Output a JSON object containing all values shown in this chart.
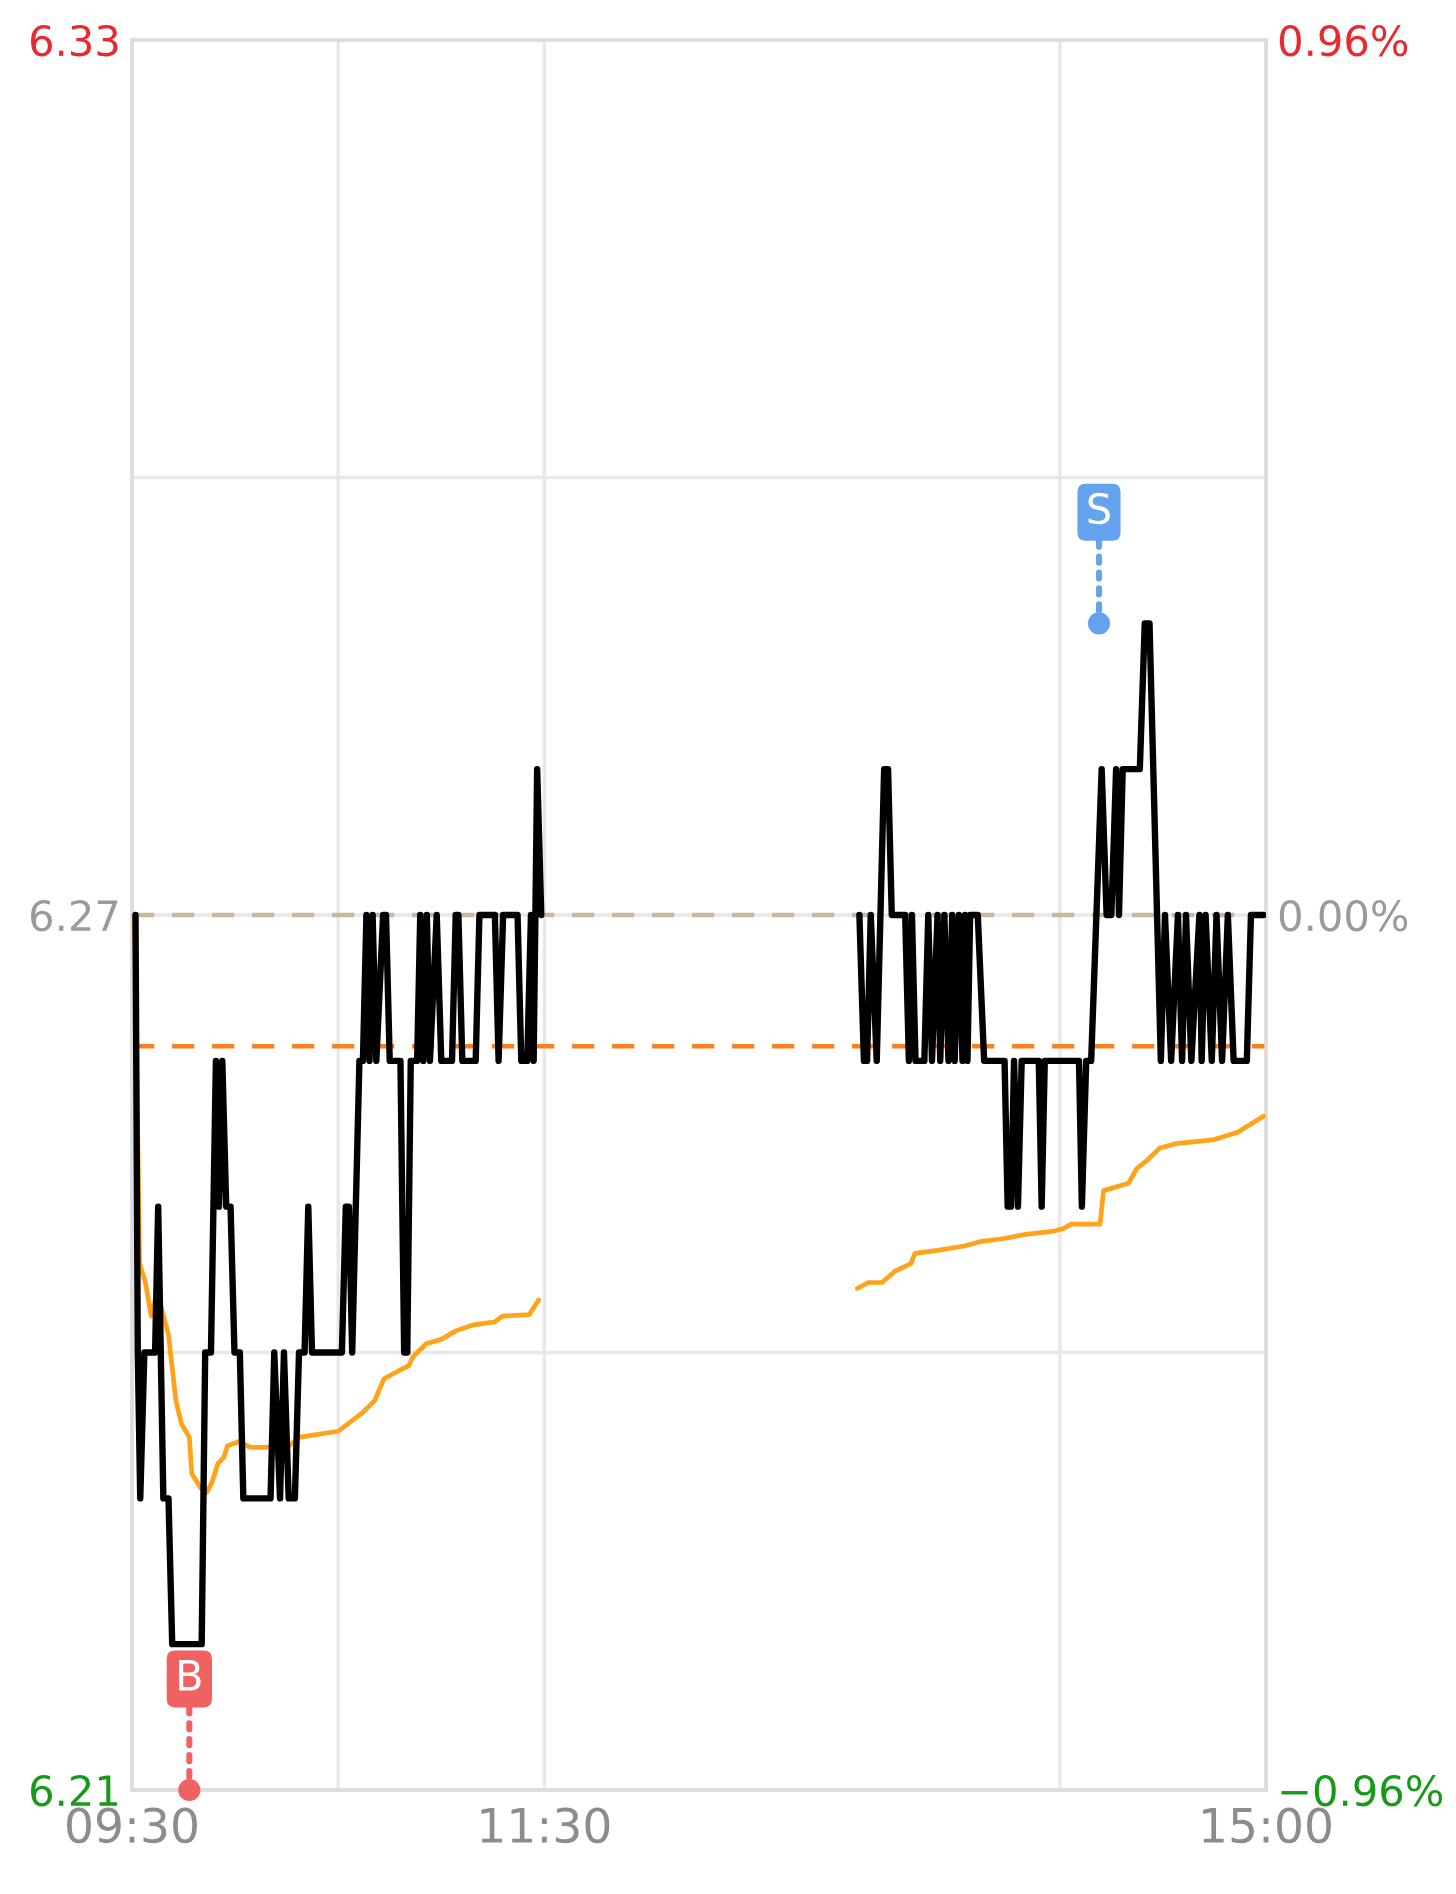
{
  "chart_data": {
    "type": "line",
    "xlim": [
      9.5,
      15
    ],
    "xticks": [
      {
        "value": 9.5,
        "label": "09:30"
      },
      {
        "value": 10.5,
        "label": null
      },
      {
        "value": 11.5,
        "label": "11:30"
      },
      {
        "value": 14,
        "label": null
      },
      {
        "value": 15,
        "label": "15:00"
      }
    ],
    "ylim": [
      6.21,
      6.33
    ],
    "yticks": [
      6.21,
      {
        "value": 6.24,
        "label": null
      },
      6.27,
      {
        "value": 6.3,
        "label": null
      },
      6.33
    ],
    "y2lim": [
      -0.96,
      0.96
    ],
    "y2ticks": [
      {
        "value": -0.96,
        "label": "−0.96%"
      },
      {
        "value": 0,
        "label": "0.00%"
      },
      {
        "value": 0.96,
        "label": "0.96%"
      }
    ],
    "grid": true,
    "series": [
      {
        "color": "#000000",
        "x": [
          9.517,
          9.528,
          9.54,
          9.56,
          9.612,
          9.627,
          9.652,
          9.677,
          9.695,
          9.838,
          9.855,
          9.883,
          9.907,
          9.922,
          9.938,
          9.957,
          9.978,
          9.997,
          10.023,
          10.04,
          10.172,
          10.19,
          10.218,
          10.237,
          10.26,
          10.29,
          10.31,
          10.337,
          10.355,
          10.373,
          10.518,
          10.537,
          10.552,
          10.568,
          10.603,
          10.62,
          10.637,
          10.652,
          10.667,
          10.685,
          10.718,
          10.732,
          10.75,
          10.802,
          10.82,
          10.835,
          10.852,
          10.883,
          10.898,
          10.913,
          10.93,
          10.945,
          10.978,
          11,
          11.052,
          11.07,
          11.083,
          11.102,
          11.167,
          11.185,
          11.26,
          11.278,
          11.3,
          11.37,
          11.388,
          11.417,
          11.435,
          11.448,
          11.465,
          11.485,
          12.25,
          13.028,
          13.05,
          13.065,
          13.083,
          13.112,
          13.148,
          13.167,
          13.185,
          13.25,
          13.268,
          13.283,
          13.3,
          13.343,
          13.362,
          13.38,
          13.407,
          13.42,
          13.44,
          13.46,
          13.478,
          13.49,
          13.51,
          13.528,
          13.54,
          13.552,
          13.565,
          13.602,
          13.633,
          13.732,
          13.747,
          13.763,
          13.778,
          13.797,
          13.815,
          13.898,
          13.912,
          13.927,
          14.093,
          14.107,
          14.128,
          14.152,
          14.203,
          14.227,
          14.25,
          14.273,
          14.287,
          14.305,
          14.388,
          14.412,
          14.435,
          14.49,
          14.51,
          14.54,
          14.573,
          14.593,
          14.612,
          14.638,
          14.677,
          14.688,
          14.707,
          14.737,
          14.76,
          14.787,
          14.815,
          14.843,
          14.907,
          14.927,
          14.988
        ],
        "values": [
          6.27,
          6.24,
          6.23,
          6.24,
          6.24,
          6.25,
          6.23,
          6.23,
          6.22,
          6.22,
          6.24,
          6.24,
          6.26,
          6.25,
          6.26,
          6.25,
          6.25,
          6.24,
          6.24,
          6.23,
          6.23,
          6.24,
          6.23,
          6.24,
          6.23,
          6.23,
          6.24,
          6.24,
          6.25,
          6.24,
          6.24,
          6.25,
          6.25,
          6.24,
          6.26,
          6.26,
          6.27,
          6.26,
          6.27,
          6.26,
          6.27,
          6.27,
          6.26,
          6.26,
          6.24,
          6.24,
          6.26,
          6.26,
          6.27,
          6.26,
          6.27,
          6.26,
          6.27,
          6.26,
          6.26,
          6.27,
          6.27,
          6.26,
          6.26,
          6.27,
          6.27,
          6.26,
          6.27,
          6.27,
          6.26,
          6.26,
          6.27,
          6.26,
          6.28,
          6.27,
          null,
          6.27,
          6.26,
          6.26,
          6.27,
          6.26,
          6.28,
          6.28,
          6.27,
          6.27,
          6.26,
          6.27,
          6.26,
          6.26,
          6.27,
          6.26,
          6.27,
          6.26,
          6.27,
          6.26,
          6.27,
          6.26,
          6.27,
          6.26,
          6.27,
          6.26,
          6.27,
          6.27,
          6.26,
          6.26,
          6.25,
          6.25,
          6.26,
          6.25,
          6.26,
          6.26,
          6.25,
          6.26,
          6.26,
          6.25,
          6.26,
          6.26,
          6.28,
          6.27,
          6.27,
          6.28,
          6.27,
          6.28,
          6.28,
          6.29,
          6.29,
          6.26,
          6.27,
          6.26,
          6.27,
          6.26,
          6.27,
          6.26,
          6.27,
          6.26,
          6.27,
          6.26,
          6.27,
          6.26,
          6.27,
          6.26,
          6.26,
          6.27,
          6.27
        ]
      },
      {
        "color": "#ffa31a",
        "x": [
          9.512,
          9.537,
          9.565,
          9.593,
          9.612,
          9.638,
          9.677,
          9.713,
          9.74,
          9.778,
          9.79,
          9.833,
          9.862,
          9.888,
          9.917,
          9.945,
          9.963,
          10.018,
          10.073,
          10.148,
          10.26,
          10.315,
          10.5,
          10.62,
          10.677,
          10.722,
          10.787,
          10.843,
          10.862,
          10.927,
          11,
          11.073,
          11.157,
          11.26,
          11.297,
          11.427,
          11.472,
          12.25,
          13.018,
          13.073,
          13.138,
          13.203,
          13.278,
          13.297,
          13.407,
          13.537,
          13.612,
          13.722,
          13.833,
          13.963,
          14.018,
          14.055,
          14.195,
          14.212,
          14.333,
          14.372,
          14.417,
          14.483,
          14.555,
          14.75,
          14.862,
          14.988
        ],
        "values": [
          6.27,
          6.2461,
          6.2448,
          6.2425,
          6.2436,
          6.2433,
          6.2412,
          6.2367,
          6.2351,
          6.2342,
          6.2317,
          6.2307,
          6.2304,
          6.2311,
          6.2324,
          6.2328,
          6.2336,
          6.2339,
          6.2335,
          6.2335,
          6.2336,
          6.2342,
          6.2346,
          6.2359,
          6.2367,
          6.2382,
          6.2387,
          6.2391,
          6.2397,
          6.2406,
          6.2409,
          6.2415,
          6.2419,
          6.2421,
          6.2425,
          6.2426,
          6.2436,
          null,
          6.2444,
          6.2448,
          6.2448,
          6.2456,
          6.2461,
          6.2468,
          6.247,
          6.2473,
          6.2476,
          6.2478,
          6.2481,
          6.2483,
          6.2485,
          6.2488,
          6.2488,
          6.2511,
          6.2516,
          6.2526,
          6.2531,
          6.254,
          6.2543,
          6.2546,
          6.2551,
          6.2562
        ]
      },
      {
        "type": "scatter",
        "name": "B",
        "color": "#f06262",
        "x": [
          9.778
        ],
        "values": [
          6.21
        ]
      },
      {
        "type": "scatter",
        "name": "S",
        "color": "#66a3ef",
        "x": [
          14.19
        ],
        "values": [
          6.29
        ]
      }
    ],
    "ref_lines": [
      {
        "axis": "y",
        "value": 6.27,
        "color": "#c8b89e",
        "line_style": "dashed"
      },
      {
        "axis": "y",
        "value": 6.261,
        "color": "#ff7f1e",
        "line_style": "dashed"
      }
    ]
  }
}
